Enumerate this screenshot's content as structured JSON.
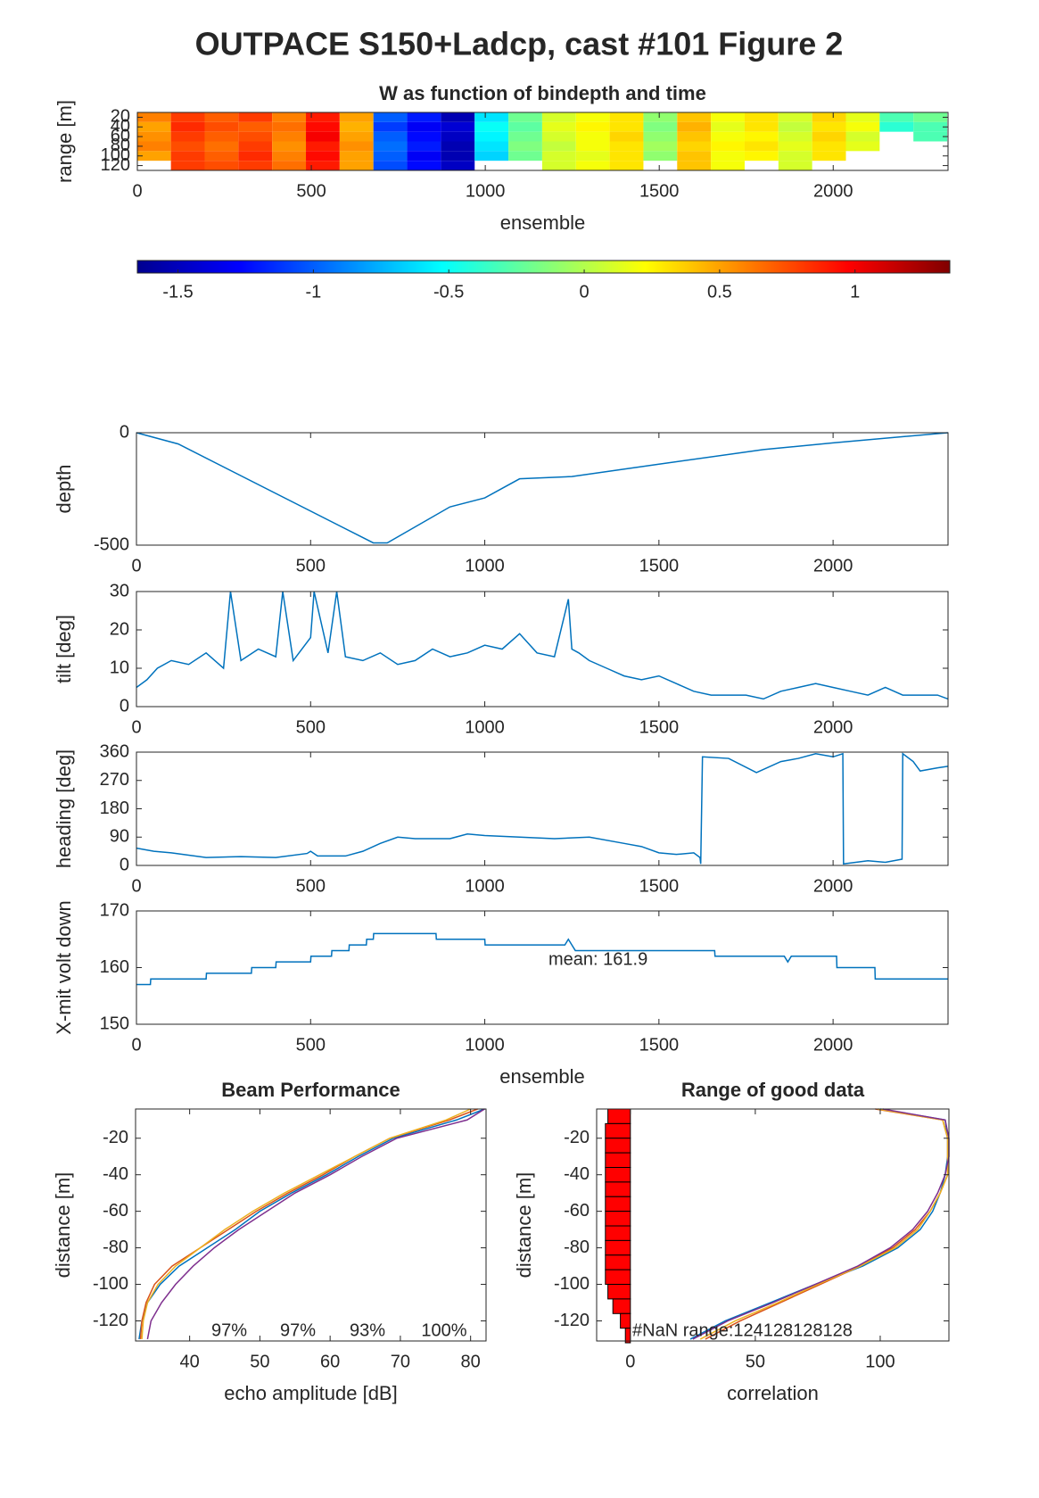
{
  "title": "OUTPACE S150+Ladcp, cast #101 Figure 2",
  "chart_data": [
    {
      "type": "heatmap",
      "title": "W as function of bindepth and time",
      "xlabel": "ensemble",
      "ylabel": "range [m]",
      "colormap": "jet",
      "xlim": [
        0,
        2330
      ],
      "xticks": [
        0,
        500,
        1000,
        1500,
        2000
      ],
      "ylim": [
        10,
        130
      ],
      "yticks": [
        20,
        40,
        60,
        80,
        100,
        120
      ],
      "y_reversed": true,
      "x": [
        48,
        145,
        242,
        339,
        436,
        533,
        630,
        727,
        824,
        921,
        1018,
        1115,
        1212,
        1309,
        1406,
        1503,
        1600,
        1697,
        1794,
        1891,
        1988,
        2085,
        2182,
        2279
      ],
      "y": [
        20,
        40,
        60,
        80,
        100,
        120
      ],
      "values": [
        [
          0.6,
          0.8,
          0.7,
          0.8,
          0.6,
          0.9,
          0.5,
          -1.0,
          -1.2,
          -1.5,
          -0.6,
          -0.2,
          0.1,
          0.2,
          0.3,
          -0.1,
          0.4,
          0.2,
          0.3,
          0.1,
          0.35,
          0.15,
          -0.3,
          -0.2
        ],
        [
          0.5,
          0.85,
          0.75,
          0.7,
          0.65,
          0.95,
          0.45,
          -1.1,
          -1.3,
          -1.4,
          -0.5,
          -0.25,
          0.15,
          0.25,
          0.3,
          -0.15,
          0.45,
          0.15,
          0.3,
          0.05,
          0.3,
          0.2,
          -0.4,
          -0.3
        ],
        [
          0.55,
          0.8,
          0.7,
          0.75,
          0.6,
          1.0,
          0.5,
          -1.0,
          -1.25,
          -1.45,
          -0.55,
          -0.2,
          0.1,
          0.2,
          0.35,
          -0.1,
          0.4,
          0.2,
          0.25,
          0.1,
          0.35,
          0.1,
          null,
          -0.3
        ],
        [
          0.6,
          0.75,
          0.65,
          0.8,
          0.55,
          0.9,
          0.55,
          -0.95,
          -1.2,
          -1.5,
          -0.6,
          -0.15,
          0.05,
          0.2,
          0.3,
          -0.05,
          0.35,
          0.25,
          0.3,
          0.15,
          0.3,
          0.15,
          null,
          null
        ],
        [
          0.5,
          0.8,
          0.7,
          0.85,
          0.6,
          0.95,
          0.5,
          -1.0,
          -1.3,
          -1.5,
          -0.65,
          -0.2,
          0.1,
          0.15,
          0.3,
          -0.1,
          0.4,
          0.2,
          0.25,
          0.1,
          0.3,
          null,
          null,
          null
        ],
        [
          null,
          0.8,
          0.75,
          0.8,
          0.65,
          0.9,
          0.5,
          -1.05,
          -1.25,
          -1.45,
          null,
          null,
          0.1,
          0.2,
          0.3,
          null,
          0.4,
          0.2,
          null,
          0.1,
          null,
          null,
          null,
          null
        ]
      ]
    },
    {
      "type": "colorbar",
      "colormap": "jet",
      "clim": [
        -1.65,
        1.35
      ],
      "ticks": [
        -1.5,
        -1,
        -0.5,
        0,
        0.5,
        1
      ]
    },
    {
      "type": "line",
      "ylabel": "depth",
      "xlim": [
        0,
        2330
      ],
      "xticks": [
        0,
        500,
        1000,
        1500,
        2000
      ],
      "ylim": [
        -500,
        0
      ],
      "yticks": [
        -500,
        0
      ],
      "x": [
        0,
        120,
        680,
        720,
        900,
        1000,
        1100,
        1250,
        1500,
        1800,
        2000,
        2330
      ],
      "series": [
        {
          "color": "#0072BD",
          "values": [
            0,
            -50,
            -490,
            -490,
            -330,
            -290,
            -205,
            -195,
            -140,
            -75,
            -45,
            0
          ]
        }
      ]
    },
    {
      "type": "line",
      "ylabel": "tilt [deg]",
      "xlim": [
        0,
        2330
      ],
      "xticks": [
        0,
        500,
        1000,
        1500,
        2000
      ],
      "ylim": [
        0,
        30
      ],
      "yticks": [
        0,
        10,
        20,
        30
      ],
      "x": [
        0,
        30,
        60,
        100,
        150,
        200,
        250,
        270,
        300,
        350,
        400,
        420,
        450,
        500,
        510,
        550,
        575,
        600,
        650,
        700,
        750,
        800,
        850,
        900,
        950,
        1000,
        1050,
        1100,
        1150,
        1200,
        1240,
        1250,
        1270,
        1300,
        1350,
        1400,
        1450,
        1500,
        1550,
        1600,
        1650,
        1700,
        1750,
        1800,
        1850,
        1900,
        1950,
        2000,
        2050,
        2100,
        2150,
        2200,
        2250,
        2300,
        2330
      ],
      "series": [
        {
          "color": "#0072BD",
          "values": [
            5,
            7,
            10,
            12,
            11,
            14,
            10,
            30,
            12,
            15,
            13,
            30,
            12,
            18,
            30,
            14,
            30,
            13,
            12,
            14,
            11,
            12,
            15,
            13,
            14,
            16,
            15,
            19,
            14,
            13,
            28,
            15,
            14,
            12,
            10,
            8,
            7,
            8,
            6,
            4,
            3,
            3,
            3,
            2,
            4,
            5,
            6,
            5,
            4,
            3,
            5,
            3,
            3,
            3,
            2
          ]
        }
      ]
    },
    {
      "type": "line",
      "ylabel": "heading [deg]",
      "xlim": [
        0,
        2330
      ],
      "xticks": [
        0,
        500,
        1000,
        1500,
        2000
      ],
      "ylim": [
        0,
        360
      ],
      "yticks": [
        0,
        90,
        180,
        270,
        360
      ],
      "x": [
        0,
        50,
        100,
        200,
        300,
        400,
        490,
        500,
        520,
        600,
        650,
        700,
        750,
        800,
        900,
        950,
        1000,
        1100,
        1200,
        1300,
        1400,
        1450,
        1500,
        1550,
        1600,
        1618,
        1620,
        1625,
        1700,
        1780,
        1850,
        1900,
        1950,
        2000,
        2028,
        2030,
        2100,
        2150,
        2198,
        2200,
        2230,
        2250,
        2300,
        2330
      ],
      "series": [
        {
          "color": "#0072BD",
          "values": [
            55,
            45,
            40,
            25,
            28,
            25,
            38,
            45,
            30,
            30,
            45,
            70,
            90,
            85,
            85,
            100,
            95,
            90,
            85,
            90,
            70,
            60,
            40,
            35,
            40,
            25,
            5,
            345,
            340,
            295,
            330,
            340,
            355,
            345,
            355,
            5,
            15,
            10,
            20,
            355,
            330,
            300,
            310,
            315
          ]
        }
      ]
    },
    {
      "type": "line",
      "ylabel": "X-mit volt down",
      "xlabel": "ensemble",
      "annotation": "mean: 161.9",
      "xlim": [
        0,
        2330
      ],
      "xticks": [
        0,
        500,
        1000,
        1500,
        2000
      ],
      "ylim": [
        150,
        170
      ],
      "yticks": [
        150,
        160,
        170
      ],
      "x": [
        0,
        40,
        41,
        200,
        201,
        330,
        331,
        400,
        401,
        500,
        501,
        560,
        561,
        610,
        611,
        660,
        661,
        680,
        681,
        860,
        861,
        1000,
        1001,
        1230,
        1240,
        1250,
        1260,
        1660,
        1661,
        1860,
        1870,
        1880,
        2010,
        2011,
        2120,
        2121,
        2330
      ],
      "series": [
        {
          "color": "#0072BD",
          "values": [
            157,
            157,
            158,
            158,
            159,
            159,
            160,
            160,
            161,
            161,
            162,
            162,
            163,
            163,
            164,
            164,
            165,
            165,
            166,
            166,
            165,
            165,
            164,
            164,
            165,
            164,
            163,
            163,
            162,
            162,
            161,
            162,
            162,
            160,
            160,
            158,
            158
          ]
        }
      ]
    },
    {
      "type": "profile",
      "title": "Beam Performance",
      "xlabel": "echo amplitude [dB]",
      "ylabel": "distance [m]",
      "annotations": [
        "97%",
        "97%",
        "93%",
        "100%"
      ],
      "xlim": [
        32.3,
        82.2
      ],
      "xticks": [
        40,
        50,
        60,
        70,
        80
      ],
      "ylim": [
        -131,
        -4
      ],
      "yticks": [
        -120,
        -100,
        -80,
        -60,
        -40,
        -20
      ],
      "y": [
        -4,
        -10,
        -20,
        -30,
        -40,
        -50,
        -60,
        -70,
        -80,
        -90,
        -100,
        -110,
        -120,
        -130
      ],
      "series": [
        {
          "color": "#0072BD",
          "values": [
            82,
            78,
            69,
            64,
            59.5,
            54.5,
            50,
            46.5,
            42.5,
            38.5,
            35.8,
            34,
            33.2,
            32.8
          ]
        },
        {
          "color": "#D95319",
          "values": [
            81,
            77,
            68.5,
            63.5,
            59,
            54,
            49.5,
            45.5,
            41.5,
            37.5,
            35,
            33.8,
            33.2,
            33
          ]
        },
        {
          "color": "#EDB120",
          "values": [
            80,
            76.5,
            68.5,
            63.5,
            58.5,
            53.5,
            49,
            45,
            41.5,
            38,
            35.5,
            34,
            33.4,
            33.2
          ]
        },
        {
          "color": "#7E2F8E",
          "values": [
            82,
            79.5,
            69.5,
            64.5,
            60,
            55,
            51,
            47,
            43.5,
            40.5,
            38,
            36,
            34.5,
            34
          ]
        }
      ]
    },
    {
      "type": "profile",
      "title": "Range of good data",
      "xlabel": "correlation",
      "ylabel": "distance [m]",
      "annotation": "#NaN range:124128128128",
      "xlim": [
        -13.5,
        127.5
      ],
      "xticks": [
        0,
        50,
        100
      ],
      "ylim": [
        -131,
        -4
      ],
      "yticks": [
        -120,
        -100,
        -80,
        -60,
        -40,
        -20
      ],
      "y": [
        -4,
        -10,
        -20,
        -30,
        -40,
        -50,
        -60,
        -70,
        -80,
        -90,
        -100,
        -110,
        -120,
        -130
      ],
      "series": [
        {
          "color": "#0072BD",
          "values": [
            100,
            126,
            127,
            127,
            126,
            124,
            121,
            116,
            107,
            93,
            74,
            56,
            38,
            24
          ]
        },
        {
          "color": "#D95319",
          "values": [
            98,
            125,
            127,
            127,
            127,
            124,
            120,
            114,
            105,
            92,
            76,
            60,
            44,
            30
          ]
        },
        {
          "color": "#EDB120",
          "values": [
            99,
            125,
            127,
            127,
            127,
            124,
            120,
            115,
            106,
            92,
            75,
            59,
            42,
            28
          ]
        },
        {
          "color": "#7E2F8E",
          "values": [
            101,
            126,
            127.5,
            127.5,
            126,
            123,
            119,
            113,
            104,
            91,
            74,
            57,
            39,
            25
          ]
        }
      ],
      "bars": {
        "color": "#ff0000",
        "y": [
          -8,
          -16,
          -24,
          -32,
          -40,
          -48,
          -56,
          -64,
          -72,
          -80,
          -88,
          -96,
          -104,
          -112,
          -120,
          -128
        ],
        "values": [
          -9,
          -10,
          -10,
          -10,
          -10,
          -10,
          -10,
          -10,
          -10,
          -10,
          -10,
          -10,
          -9,
          -7,
          -4,
          -2
        ]
      }
    }
  ]
}
